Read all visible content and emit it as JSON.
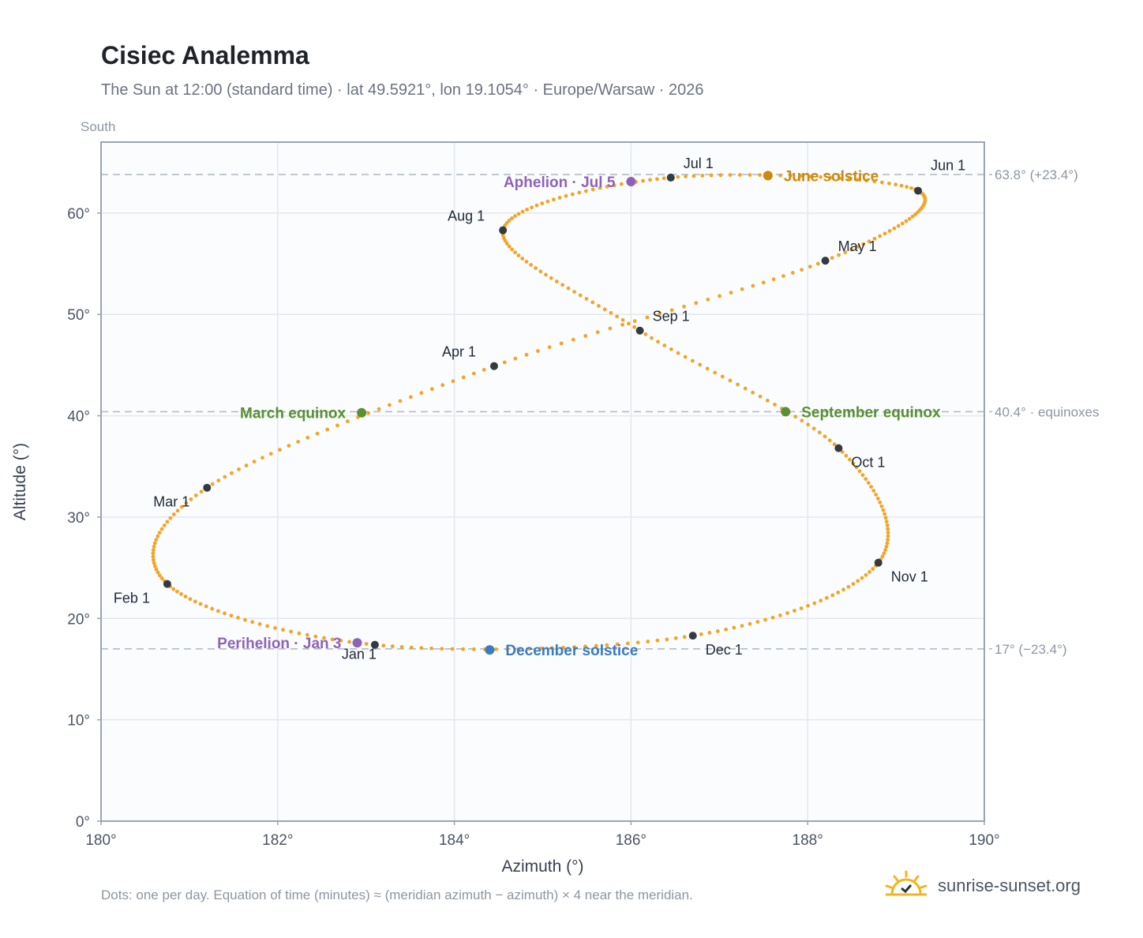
{
  "header": {
    "title": "Cisiec Analemma",
    "subtitle": "The Sun at 12:00 (standard time) · lat 49.5921°, lon 19.1054° · Europe/Warsaw · 2026"
  },
  "south_label": "South",
  "footnote": "Dots: one per day. Equation of time (minutes) ≈ (meridian azimuth − azimuth) × 4 near the meridian.",
  "brand": {
    "text": "sunrise-sunset.org",
    "icon": "sun-icon"
  },
  "colors": {
    "curve": "#f2a528",
    "marker": "#343a40",
    "june_solstice": "#cc8a0b",
    "december_solstice": "#3b7bbf",
    "equinox": "#5a8f33",
    "apsis": "#8f62b8",
    "plot_bg": "#fafcfe",
    "grid": "#e4e8ed",
    "reference": "#b4bcc6"
  },
  "chart_data": {
    "type": "scatter",
    "title": "Cisiec Analemma",
    "subtitle": "The Sun at 12:00 (standard time) · lat 49.5921°, lon 19.1054° · Europe/Warsaw · 2026",
    "xlabel": "Azimuth (°)",
    "ylabel": "Altitude (°)",
    "xlim": [
      180,
      190
    ],
    "ylim": [
      0,
      67
    ],
    "xticks": [
      180,
      182,
      184,
      186,
      188,
      190
    ],
    "yticks": [
      0,
      10,
      20,
      30,
      40,
      50,
      60
    ],
    "x_tick_labels": [
      "180°",
      "182°",
      "184°",
      "186°",
      "188°",
      "190°"
    ],
    "y_tick_labels": [
      "0°",
      "10°",
      "20°",
      "30°",
      "40°",
      "50°",
      "60°"
    ],
    "grid": true,
    "reference_lines": [
      {
        "y": 63.8,
        "label": "63.8° (+23.4°)"
      },
      {
        "y": 40.4,
        "label": "40.4° · equinoxes"
      },
      {
        "y": 17,
        "label": "17° (−23.4°)"
      }
    ],
    "meridian_azimuth": 180,
    "analemma_anchors": [
      {
        "label": "Jan 1",
        "x": 183.1,
        "y": 17.4
      },
      {
        "label": "Feb 1",
        "x": 180.75,
        "y": 23.4
      },
      {
        "label": "Mar 1",
        "x": 181.2,
        "y": 32.9
      },
      {
        "label": "Apr 1",
        "x": 184.45,
        "y": 44.9
      },
      {
        "label": "May 1",
        "x": 188.2,
        "y": 55.3
      },
      {
        "label": "Jun 1",
        "x": 189.25,
        "y": 62.2
      },
      {
        "label": "Jul 1",
        "x": 186.45,
        "y": 63.5
      },
      {
        "label": "Aug 1",
        "x": 184.55,
        "y": 58.3
      },
      {
        "label": "Sep 1",
        "x": 186.1,
        "y": 48.4
      },
      {
        "label": "Oct 1",
        "x": 188.35,
        "y": 36.8
      },
      {
        "label": "Nov 1",
        "x": 188.8,
        "y": 25.5
      },
      {
        "label": "Dec 1",
        "x": 186.7,
        "y": 18.3
      }
    ],
    "events": [
      {
        "label": "June solstice",
        "x": 187.55,
        "y": 63.7,
        "color_key": "june_solstice"
      },
      {
        "label": "December solstice",
        "x": 184.4,
        "y": 16.9,
        "color_key": "december_solstice"
      },
      {
        "label": "March equinox",
        "x": 182.95,
        "y": 40.3,
        "color_key": "equinox"
      },
      {
        "label": "September equinox",
        "x": 187.75,
        "y": 40.4,
        "color_key": "equinox"
      },
      {
        "label": "Aphelion · Jul 5",
        "x": 186.0,
        "y": 63.1,
        "color_key": "apsis"
      },
      {
        "label": "Perihelion · Jan 3",
        "x": 182.9,
        "y": 17.6,
        "color_key": "apsis"
      }
    ]
  }
}
